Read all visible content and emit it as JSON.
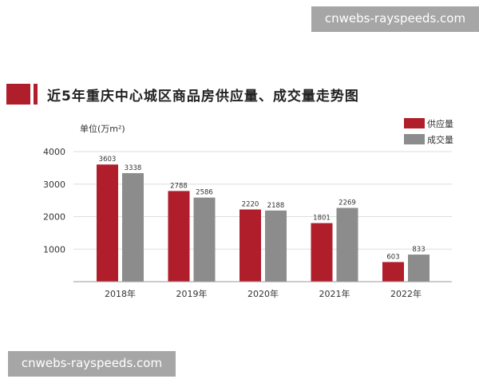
{
  "watermark_top": "cnwebs-rayspeeds.com",
  "watermark_bottom": "cnwebs-rayspeeds.com",
  "title": "近5年重庆中心城区商品房供应量、成交量走势图",
  "colors": {
    "supply": "#b01e2b",
    "deal": "#8c8c8c",
    "accent": "#b01e2b"
  },
  "chart_data": {
    "type": "bar",
    "title": "近5年重庆中心城区商品房供应量、成交量走势图",
    "ylabel": "单位(万m²)",
    "xlabel": "",
    "categories": [
      "2018年",
      "2019年",
      "2020年",
      "2021年",
      "2022年"
    ],
    "series": [
      {
        "name": "供应量",
        "values": [
          3603,
          2788,
          2220,
          1801,
          603
        ]
      },
      {
        "name": "成交量",
        "values": [
          3338,
          2586,
          2188,
          2269,
          833
        ]
      }
    ],
    "yticks": [
      1000,
      2000,
      3000,
      4000
    ],
    "ylim": [
      0,
      4000
    ],
    "grid": true,
    "legend": "top-right"
  }
}
